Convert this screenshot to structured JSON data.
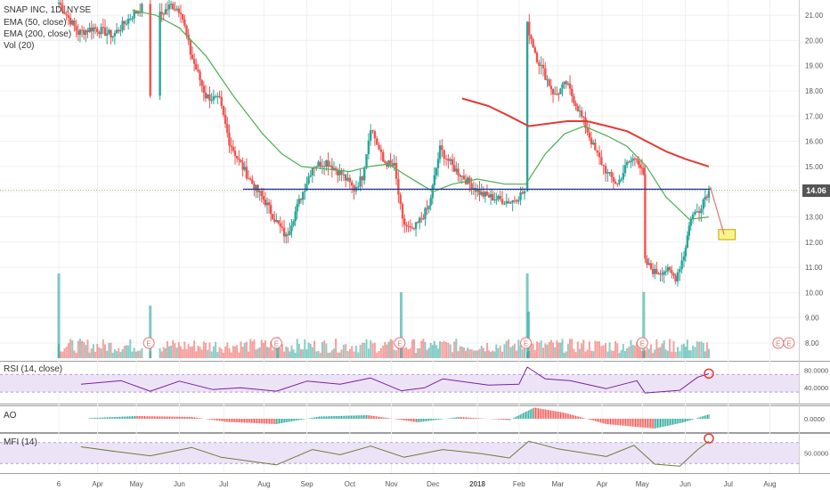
{
  "colors": {
    "up": "#26a69a",
    "down": "#ef5350",
    "ema50": "#4caf50",
    "ema200": "#e53935",
    "hline": "#283593",
    "rsi": "#7b1fa2",
    "mfi": "#6b7d3a",
    "band": "#ede3f7",
    "grid": "#f0f0f0",
    "earnings": "#e57373",
    "target": "#f5f58a"
  },
  "legend": {
    "title": "SNAP INC, 1D, NYSE",
    "ema50": "EMA (50, close)",
    "ema200": "EMA (200, close)",
    "vol": "Vol (20)"
  },
  "indicators": {
    "rsi": "RSI (14, close)",
    "ao": "AO",
    "mfi": "MFI (14)"
  },
  "earnings_label": "E",
  "last_price_tag": "14.06",
  "chart_data": {
    "type": "candlestick",
    "xlabels": [
      "6",
      "Apr",
      "May",
      "Jun",
      "Jul",
      "Aug",
      "Sep",
      "Oct",
      "Nov",
      "Dec",
      "2018",
      "Feb",
      "Mar",
      "Apr",
      "May",
      "Jun",
      "Jul",
      "Aug"
    ],
    "yticks": [
      "8.00",
      "9.00",
      "10.00",
      "11.00",
      "12.00",
      "13.00",
      "14.00",
      "15.00",
      "16.00",
      "17.00",
      "18.00",
      "19.00",
      "20.00",
      "21.00"
    ],
    "ylim": [
      7.6,
      21.6
    ],
    "price_path": [
      {
        "date": "2017-03-06",
        "close": 21.5
      },
      {
        "date": "2017-03-20",
        "close": 20.3
      },
      {
        "date": "2017-03-31",
        "close": 20.5
      },
      {
        "date": "2017-04-14",
        "close": 20.2
      },
      {
        "date": "2017-04-28",
        "close": 21.0
      },
      {
        "date": "2017-05-05",
        "close": 21.3
      },
      {
        "date": "2017-05-11",
        "close": 17.9
      },
      {
        "date": "2017-05-18",
        "close": 21.0
      },
      {
        "date": "2017-05-26",
        "close": 21.4
      },
      {
        "date": "2017-06-02",
        "close": 21.2
      },
      {
        "date": "2017-06-09",
        "close": 19.5
      },
      {
        "date": "2017-06-20",
        "close": 17.8
      },
      {
        "date": "2017-06-30",
        "close": 17.6
      },
      {
        "date": "2017-07-07",
        "close": 16.0
      },
      {
        "date": "2017-07-14",
        "close": 15.2
      },
      {
        "date": "2017-07-25",
        "close": 14.2
      },
      {
        "date": "2017-08-02",
        "close": 13.6
      },
      {
        "date": "2017-08-10",
        "close": 12.8
      },
      {
        "date": "2017-08-17",
        "close": 12.2
      },
      {
        "date": "2017-08-25",
        "close": 13.4
      },
      {
        "date": "2017-09-05",
        "close": 15.0
      },
      {
        "date": "2017-09-15",
        "close": 15.2
      },
      {
        "date": "2017-09-26",
        "close": 14.7
      },
      {
        "date": "2017-10-05",
        "close": 14.1
      },
      {
        "date": "2017-10-11",
        "close": 14.6
      },
      {
        "date": "2017-10-17",
        "close": 16.6
      },
      {
        "date": "2017-10-26",
        "close": 15.2
      },
      {
        "date": "2017-11-03",
        "close": 15.0
      },
      {
        "date": "2017-11-09",
        "close": 12.8
      },
      {
        "date": "2017-11-16",
        "close": 12.4
      },
      {
        "date": "2017-11-28",
        "close": 13.4
      },
      {
        "date": "2017-12-06",
        "close": 15.7
      },
      {
        "date": "2017-12-15",
        "close": 15.0
      },
      {
        "date": "2017-12-26",
        "close": 14.4
      },
      {
        "date": "2018-01-05",
        "close": 13.9
      },
      {
        "date": "2018-01-17",
        "close": 13.7
      },
      {
        "date": "2018-01-26",
        "close": 13.6
      },
      {
        "date": "2018-02-05",
        "close": 14.0
      },
      {
        "date": "2018-02-07",
        "close": 20.6
      },
      {
        "date": "2018-02-14",
        "close": 19.3
      },
      {
        "date": "2018-02-20",
        "close": 18.6
      },
      {
        "date": "2018-02-27",
        "close": 17.8
      },
      {
        "date": "2018-03-07",
        "close": 18.3
      },
      {
        "date": "2018-03-14",
        "close": 17.5
      },
      {
        "date": "2018-03-21",
        "close": 16.6
      },
      {
        "date": "2018-03-28",
        "close": 15.6
      },
      {
        "date": "2018-04-06",
        "close": 14.7
      },
      {
        "date": "2018-04-13",
        "close": 14.3
      },
      {
        "date": "2018-04-20",
        "close": 15.1
      },
      {
        "date": "2018-04-27",
        "close": 15.4
      },
      {
        "date": "2018-05-02",
        "close": 14.6
      },
      {
        "date": "2018-05-03",
        "close": 11.2
      },
      {
        "date": "2018-05-10",
        "close": 10.8
      },
      {
        "date": "2018-05-18",
        "close": 10.9
      },
      {
        "date": "2018-05-25",
        "close": 10.6
      },
      {
        "date": "2018-05-31",
        "close": 11.5
      },
      {
        "date": "2018-06-05",
        "close": 13.0
      },
      {
        "date": "2018-06-11",
        "close": 13.3
      },
      {
        "date": "2018-06-14",
        "close": 13.7
      },
      {
        "date": "2018-06-18",
        "close": 14.06
      }
    ],
    "ema50": [
      {
        "date": "2017-04-28",
        "value": 21.2
      },
      {
        "date": "2017-05-15",
        "value": 21.0
      },
      {
        "date": "2017-06-01",
        "value": 20.5
      },
      {
        "date": "2017-06-20",
        "value": 19.4
      },
      {
        "date": "2017-07-10",
        "value": 17.8
      },
      {
        "date": "2017-07-31",
        "value": 16.3
      },
      {
        "date": "2017-08-14",
        "value": 15.5
      },
      {
        "date": "2017-08-28",
        "value": 15.0
      },
      {
        "date": "2017-09-15",
        "value": 14.9
      },
      {
        "date": "2017-10-02",
        "value": 14.8
      },
      {
        "date": "2017-10-16",
        "value": 15.0
      },
      {
        "date": "2017-10-30",
        "value": 15.1
      },
      {
        "date": "2017-11-13",
        "value": 14.6
      },
      {
        "date": "2017-12-01",
        "value": 14.0
      },
      {
        "date": "2017-12-15",
        "value": 14.3
      },
      {
        "date": "2018-01-02",
        "value": 14.5
      },
      {
        "date": "2018-01-22",
        "value": 14.3
      },
      {
        "date": "2018-02-06",
        "value": 14.3
      },
      {
        "date": "2018-02-20",
        "value": 15.5
      },
      {
        "date": "2018-03-06",
        "value": 16.3
      },
      {
        "date": "2018-03-20",
        "value": 16.6
      },
      {
        "date": "2018-04-06",
        "value": 16.2
      },
      {
        "date": "2018-04-20",
        "value": 15.8
      },
      {
        "date": "2018-05-04",
        "value": 15.0
      },
      {
        "date": "2018-05-18",
        "value": 13.8
      },
      {
        "date": "2018-06-04",
        "value": 12.9
      },
      {
        "date": "2018-06-18",
        "value": 13.0
      }
    ],
    "ema200": [
      {
        "date": "2017-12-22",
        "value": 17.7
      },
      {
        "date": "2018-01-10",
        "value": 17.4
      },
      {
        "date": "2018-01-25",
        "value": 17.0
      },
      {
        "date": "2018-02-08",
        "value": 16.6
      },
      {
        "date": "2018-02-22",
        "value": 16.7
      },
      {
        "date": "2018-03-08",
        "value": 16.8
      },
      {
        "date": "2018-03-22",
        "value": 16.8
      },
      {
        "date": "2018-04-06",
        "value": 16.6
      },
      {
        "date": "2018-04-20",
        "value": 16.4
      },
      {
        "date": "2018-05-04",
        "value": 16.0
      },
      {
        "date": "2018-05-18",
        "value": 15.6
      },
      {
        "date": "2018-06-01",
        "value": 15.3
      },
      {
        "date": "2018-06-18",
        "value": 15.0
      }
    ],
    "support_line": {
      "value": 14.1,
      "from": "2017-07-17",
      "to": "2018-06-20"
    },
    "projection": {
      "from_date": "2018-06-19",
      "from_value": 14.2,
      "to_date": "2018-06-29",
      "to_value": 12.3
    },
    "target_box": {
      "from_date": "2018-06-25",
      "to_date": "2018-07-07",
      "low": 12.1,
      "high": 12.5
    },
    "earnings_dates": [
      "2017-05-10",
      "2017-08-10",
      "2017-11-07",
      "2018-02-06",
      "2018-05-01",
      "2018-08-07"
    ],
    "volume_spikes": [
      {
        "date": "2017-03-06",
        "value": 1.0
      },
      {
        "date": "2017-05-11",
        "value": 0.62
      },
      {
        "date": "2017-08-11",
        "value": 0.25
      },
      {
        "date": "2017-11-08",
        "value": 0.78
      },
      {
        "date": "2018-02-07",
        "value": 1.0
      },
      {
        "date": "2018-02-08",
        "value": 0.55
      },
      {
        "date": "2018-05-02",
        "value": 0.78
      }
    ],
    "rsi": {
      "yticks": [
        "80.0000",
        "40.0000"
      ],
      "band": [
        30,
        70
      ],
      "ylim": [
        10,
        95
      ],
      "points": [
        {
          "date": "2017-03-22",
          "value": 48
        },
        {
          "date": "2017-04-20",
          "value": 56
        },
        {
          "date": "2017-05-11",
          "value": 32
        },
        {
          "date": "2017-06-01",
          "value": 55
        },
        {
          "date": "2017-06-25",
          "value": 36
        },
        {
          "date": "2017-07-15",
          "value": 40
        },
        {
          "date": "2017-08-10",
          "value": 32
        },
        {
          "date": "2017-09-01",
          "value": 55
        },
        {
          "date": "2017-09-25",
          "value": 48
        },
        {
          "date": "2017-10-17",
          "value": 62
        },
        {
          "date": "2017-11-08",
          "value": 33
        },
        {
          "date": "2017-11-25",
          "value": 40
        },
        {
          "date": "2017-12-08",
          "value": 60
        },
        {
          "date": "2018-01-10",
          "value": 46
        },
        {
          "date": "2018-02-01",
          "value": 48
        },
        {
          "date": "2018-02-07",
          "value": 87
        },
        {
          "date": "2018-02-20",
          "value": 60
        },
        {
          "date": "2018-03-10",
          "value": 56
        },
        {
          "date": "2018-04-05",
          "value": 38
        },
        {
          "date": "2018-04-27",
          "value": 56
        },
        {
          "date": "2018-05-03",
          "value": 28
        },
        {
          "date": "2018-05-28",
          "value": 34
        },
        {
          "date": "2018-06-10",
          "value": 64
        },
        {
          "date": "2018-06-18",
          "value": 72
        }
      ]
    },
    "ao": {
      "yticks": [
        "0.0000"
      ],
      "bars": [
        {
          "date": "2017-04-01",
          "value": 0.2
        },
        {
          "date": "2017-05-01",
          "value": 0.6
        },
        {
          "date": "2017-06-10",
          "value": 0.4
        },
        {
          "date": "2017-07-05",
          "value": -0.7
        },
        {
          "date": "2017-08-10",
          "value": -1.2
        },
        {
          "date": "2017-09-10",
          "value": 0.5
        },
        {
          "date": "2017-10-15",
          "value": 0.8
        },
        {
          "date": "2017-11-20",
          "value": -0.8
        },
        {
          "date": "2017-12-20",
          "value": 0.4
        },
        {
          "date": "2018-01-25",
          "value": -0.3
        },
        {
          "date": "2018-02-12",
          "value": 2.5
        },
        {
          "date": "2018-03-05",
          "value": 1.4
        },
        {
          "date": "2018-04-05",
          "value": -1.2
        },
        {
          "date": "2018-05-10",
          "value": -2.2
        },
        {
          "date": "2018-05-31",
          "value": -0.8
        },
        {
          "date": "2018-06-18",
          "value": 1.0
        }
      ]
    },
    "mfi": {
      "yticks": [
        "50.0000"
      ],
      "band": [
        20,
        80
      ],
      "ylim": [
        0,
        100
      ],
      "points": [
        {
          "date": "2017-03-22",
          "value": 68
        },
        {
          "date": "2017-04-15",
          "value": 55
        },
        {
          "date": "2017-05-11",
          "value": 42
        },
        {
          "date": "2017-06-10",
          "value": 66
        },
        {
          "date": "2017-07-01",
          "value": 38
        },
        {
          "date": "2017-08-10",
          "value": 16
        },
        {
          "date": "2017-09-05",
          "value": 60
        },
        {
          "date": "2017-09-25",
          "value": 45
        },
        {
          "date": "2017-10-17",
          "value": 70
        },
        {
          "date": "2017-11-10",
          "value": 38
        },
        {
          "date": "2017-12-08",
          "value": 60
        },
        {
          "date": "2018-01-05",
          "value": 48
        },
        {
          "date": "2018-01-25",
          "value": 36
        },
        {
          "date": "2018-02-08",
          "value": 84
        },
        {
          "date": "2018-03-01",
          "value": 62
        },
        {
          "date": "2018-04-05",
          "value": 40
        },
        {
          "date": "2018-04-25",
          "value": 72
        },
        {
          "date": "2018-05-10",
          "value": 18
        },
        {
          "date": "2018-05-28",
          "value": 12
        },
        {
          "date": "2018-06-10",
          "value": 60
        },
        {
          "date": "2018-06-18",
          "value": 84
        }
      ]
    }
  }
}
